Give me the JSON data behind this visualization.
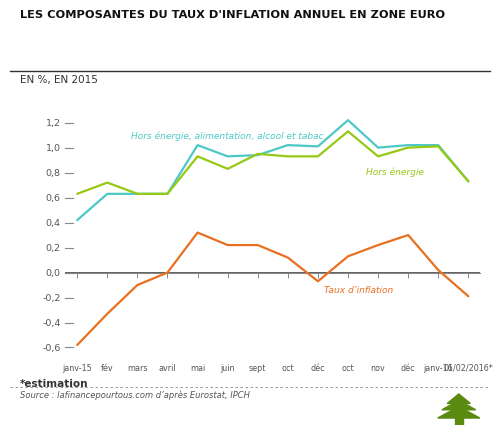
{
  "title": "LES COMPOSANTES DU TAUX D'INFLATION ANNUEL EN ZONE EURO",
  "subtitle": "EN %, EN 2015",
  "x_labels": [
    "janv-15",
    "fév",
    "mars",
    "avril",
    "mai",
    "juin",
    "sept",
    "oct",
    "déc",
    "oct",
    "nov",
    "déc",
    "janv-16",
    "01/02/2016*"
  ],
  "hors_energie_alim": [
    0.42,
    0.63,
    0.63,
    0.63,
    1.02,
    0.93,
    0.94,
    1.02,
    1.01,
    1.22,
    1.0,
    1.02,
    1.02,
    0.73
  ],
  "hors_energie": [
    0.63,
    0.72,
    0.63,
    0.63,
    0.93,
    0.83,
    0.95,
    0.93,
    0.93,
    1.13,
    0.93,
    1.0,
    1.01,
    0.73
  ],
  "taux_inflation": [
    -0.58,
    -0.33,
    -0.1,
    0.0,
    0.32,
    0.22,
    0.22,
    0.12,
    -0.07,
    0.13,
    0.22,
    0.3,
    0.02,
    -0.19
  ],
  "color_hors_energie_alim": "#4dc8c8",
  "color_hors_energie": "#96c814",
  "color_taux_inflation": "#e87020",
  "ylim": [
    -0.68,
    1.33
  ],
  "yticks": [
    -0.6,
    -0.4,
    -0.2,
    0.0,
    0.2,
    0.4,
    0.6,
    0.8,
    1.0,
    1.2
  ],
  "ytick_labels": [
    "-0,6",
    "-0,4",
    "-0,2",
    "0,0",
    "0,2",
    "0,4",
    "0,6",
    "0,8",
    "1,0",
    "1,2"
  ],
  "source": "Source : lafinancepourtous.com d’après Eurostat, IPCH",
  "estimation": "*estimation",
  "label_hors_energie_alim": "Hors énergie, alimentation, alcool et tabac",
  "label_hors_energie": "Hors énergie",
  "label_taux_inflation": "Taux d’inflation",
  "background_color": "#ffffff",
  "title_bg_color": "#ffffff",
  "tick_color": "#888888",
  "text_color": "#333333"
}
